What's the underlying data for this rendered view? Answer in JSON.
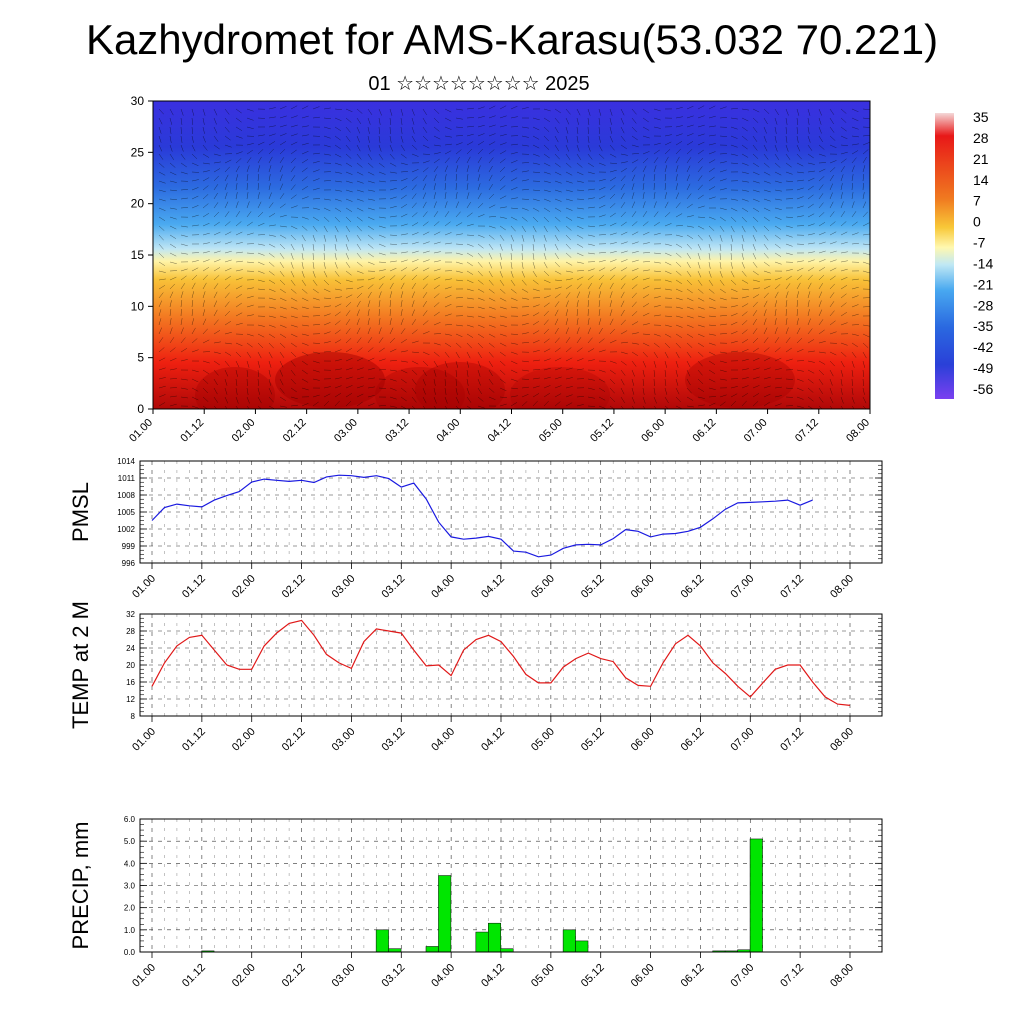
{
  "title": "Kazhydromet for AMS-Karasu(53.032 70.221)",
  "subtitle": "01 ☆☆☆☆☆☆☆☆ 2025",
  "x_ticks": [
    "01.00",
    "01.12",
    "02.00",
    "02.12",
    "03.00",
    "03.12",
    "04.00",
    "04.12",
    "05.00",
    "05.12",
    "06.00",
    "06.12",
    "07.00",
    "07.12",
    "08.00"
  ],
  "chart_data": [
    {
      "type": "heatmap",
      "y_ticks": [
        "0",
        "5",
        "10",
        "15",
        "20",
        "25",
        "30"
      ],
      "ylim": [
        0,
        30
      ],
      "colorbar_labels": [
        "35",
        "28",
        "21",
        "14",
        "7",
        "0",
        "-7",
        "-14",
        "-21",
        "-28",
        "-35",
        "-42",
        "-49",
        "-56"
      ],
      "colors": [
        "#f2f2f2",
        "#e81818",
        "#f07020",
        "#f8c030",
        "#fff8a0",
        "#88d8f0",
        "#3898e8",
        "#2850d8",
        "#7040f0"
      ]
    },
    {
      "type": "line",
      "ylabel": "PMSL",
      "y_ticks": [
        "1014",
        "1011",
        "1008",
        "1005",
        "1002",
        "999",
        "996"
      ],
      "ylim": [
        996,
        1014
      ],
      "line_color": "#1a1ae0",
      "x": [
        0,
        3,
        6,
        9,
        12,
        15,
        18,
        21,
        24,
        27,
        30,
        33,
        36,
        39,
        42,
        45,
        48,
        51,
        54,
        57,
        60,
        63,
        66,
        69,
        72,
        75,
        78,
        81,
        84,
        87,
        90,
        93,
        96,
        99,
        102,
        105,
        108,
        111,
        114,
        117,
        120,
        123,
        126,
        129,
        132,
        135,
        138,
        141,
        144,
        147,
        150,
        153,
        156,
        159,
        162,
        165,
        168
      ],
      "values": [
        1003.5,
        1005.8,
        1006.4,
        1006.1,
        1005.9,
        1007.1,
        1007.9,
        1008.6,
        1010.3,
        1010.8,
        1010.6,
        1010.4,
        1010.6,
        1010.2,
        1011.2,
        1011.5,
        1011.4,
        1011.1,
        1011.4,
        1010.9,
        1009.4,
        1010.1,
        1007.3,
        1003.2,
        1000.6,
        1000.2,
        1000.4,
        1000.7,
        1000.2,
        998.1,
        997.9,
        997.1,
        997.4,
        998.6,
        999.2,
        999.3,
        999.2,
        1000.3,
        1001.9,
        1001.6,
        1000.6,
        1001.1,
        1001.2,
        1001.6,
        1002.3,
        1003.8,
        1005.5,
        1006.6,
        1006.7,
        1006.8,
        1006.9,
        1007.1,
        1006.2,
        1007.1,
        null,
        null,
        null
      ]
    },
    {
      "type": "line",
      "ylabel": "TEMP at 2 M",
      "y_ticks": [
        "32",
        "28",
        "24",
        "20",
        "16",
        "12",
        "8"
      ],
      "ylim": [
        8,
        32
      ],
      "line_color": "#e01818",
      "x": [
        0,
        3,
        6,
        9,
        12,
        15,
        18,
        21,
        24,
        27,
        30,
        33,
        36,
        39,
        42,
        45,
        48,
        51,
        54,
        57,
        60,
        63,
        66,
        69,
        72,
        75,
        78,
        81,
        84,
        87,
        90,
        93,
        96,
        99,
        102,
        105,
        108,
        111,
        114,
        117,
        120,
        123,
        126,
        129,
        132,
        135,
        138,
        141,
        144,
        147,
        150,
        153,
        156,
        159,
        162,
        165,
        168
      ],
      "values": [
        15.0,
        20.5,
        24.5,
        26.5,
        27.0,
        23.5,
        20.0,
        19.0,
        19.0,
        24.5,
        27.5,
        29.8,
        30.5,
        27.0,
        22.5,
        20.5,
        19.2,
        25.5,
        28.5,
        28.0,
        27.5,
        23.5,
        19.8,
        20.0,
        17.5,
        23.5,
        26.0,
        27.0,
        25.5,
        22.0,
        17.8,
        15.8,
        15.8,
        19.5,
        21.5,
        22.8,
        21.5,
        20.8,
        17.0,
        15.2,
        15.0,
        20.5,
        25.0,
        27.0,
        24.5,
        20.5,
        18.0,
        15.0,
        12.5,
        15.8,
        19.0,
        20.0,
        20.0,
        16.0,
        12.5,
        10.8,
        10.5
      ]
    },
    {
      "type": "bar",
      "ylabel": "PRECIP, mm",
      "y_ticks": [
        "6.0",
        "5.0",
        "4.0",
        "3.0",
        "2.0",
        "1.0",
        "0.0"
      ],
      "ylim": [
        0,
        6
      ],
      "bar_color": "#00e600",
      "x": [
        0,
        3,
        6,
        9,
        12,
        15,
        18,
        21,
        24,
        27,
        30,
        33,
        36,
        39,
        42,
        45,
        48,
        51,
        54,
        57,
        60,
        63,
        66,
        69,
        72,
        75,
        78,
        81,
        84,
        87,
        90,
        93,
        96,
        99,
        102,
        105,
        108,
        111,
        114,
        117,
        120,
        123,
        126,
        129,
        132,
        135,
        138,
        141,
        144,
        147,
        150,
        153,
        156,
        159,
        162,
        165,
        168
      ],
      "values": [
        0,
        0,
        0,
        0,
        0.05,
        0,
        0,
        0,
        0,
        0,
        0,
        0,
        0,
        0,
        0,
        0,
        0,
        0,
        1.0,
        0.15,
        0,
        0,
        0.25,
        3.45,
        0,
        0,
        0.9,
        1.3,
        0.15,
        0,
        0,
        0,
        0,
        1.0,
        0.5,
        0,
        0,
        0,
        0,
        0,
        0,
        0,
        0,
        0,
        0,
        0.05,
        0.05,
        0.1,
        5.1,
        0,
        0,
        0,
        0,
        0,
        0,
        0,
        0
      ]
    }
  ]
}
